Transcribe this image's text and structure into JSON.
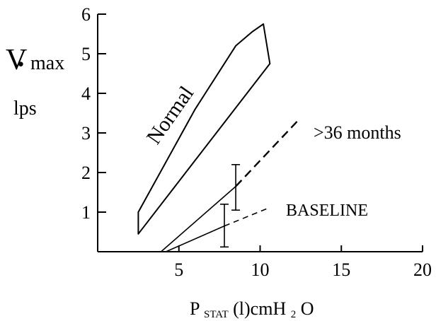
{
  "chart_data": {
    "type": "line",
    "title": "",
    "ylabel": {
      "symbol": "V",
      "symbol_mark": "˙",
      "subscript": "max",
      "unit": "lps"
    },
    "xlabel": {
      "symbol": "P",
      "subscript": "STAT",
      "suffix": " (l)cmH",
      "sub2": "2",
      "tail": "O"
    },
    "xlim": [
      0,
      20
    ],
    "ylim": [
      0,
      6
    ],
    "xticks": [
      5,
      10,
      15,
      20
    ],
    "yticks": [
      1,
      2,
      3,
      4,
      5,
      6
    ],
    "grid": false,
    "series": [
      {
        "name": "Normal",
        "kind": "band",
        "points": [
          [
            2.5,
            1.0
          ],
          [
            6.0,
            3.6
          ],
          [
            8.5,
            5.2
          ],
          [
            9.5,
            5.55
          ],
          [
            10.2,
            5.75
          ],
          [
            10.6,
            4.75
          ],
          [
            2.5,
            0.45
          ]
        ]
      },
      {
        "name": ">36 months",
        "kind": "line",
        "solid": [
          [
            3.9,
            0.0
          ],
          [
            8.5,
            1.65
          ]
        ],
        "dashed": [
          [
            8.5,
            1.65
          ],
          [
            12.3,
            3.3
          ]
        ],
        "error_bar": {
          "x": 8.5,
          "low": 1.05,
          "high": 2.2
        }
      },
      {
        "name": "BASELINE",
        "kind": "line",
        "solid": [
          [
            4.2,
            0.0
          ],
          [
            7.8,
            0.65
          ]
        ],
        "dashed": [
          [
            7.8,
            0.65
          ],
          [
            10.5,
            1.1
          ]
        ],
        "error_bar": {
          "x": 7.8,
          "low": 0.12,
          "high": 1.2
        }
      }
    ]
  }
}
